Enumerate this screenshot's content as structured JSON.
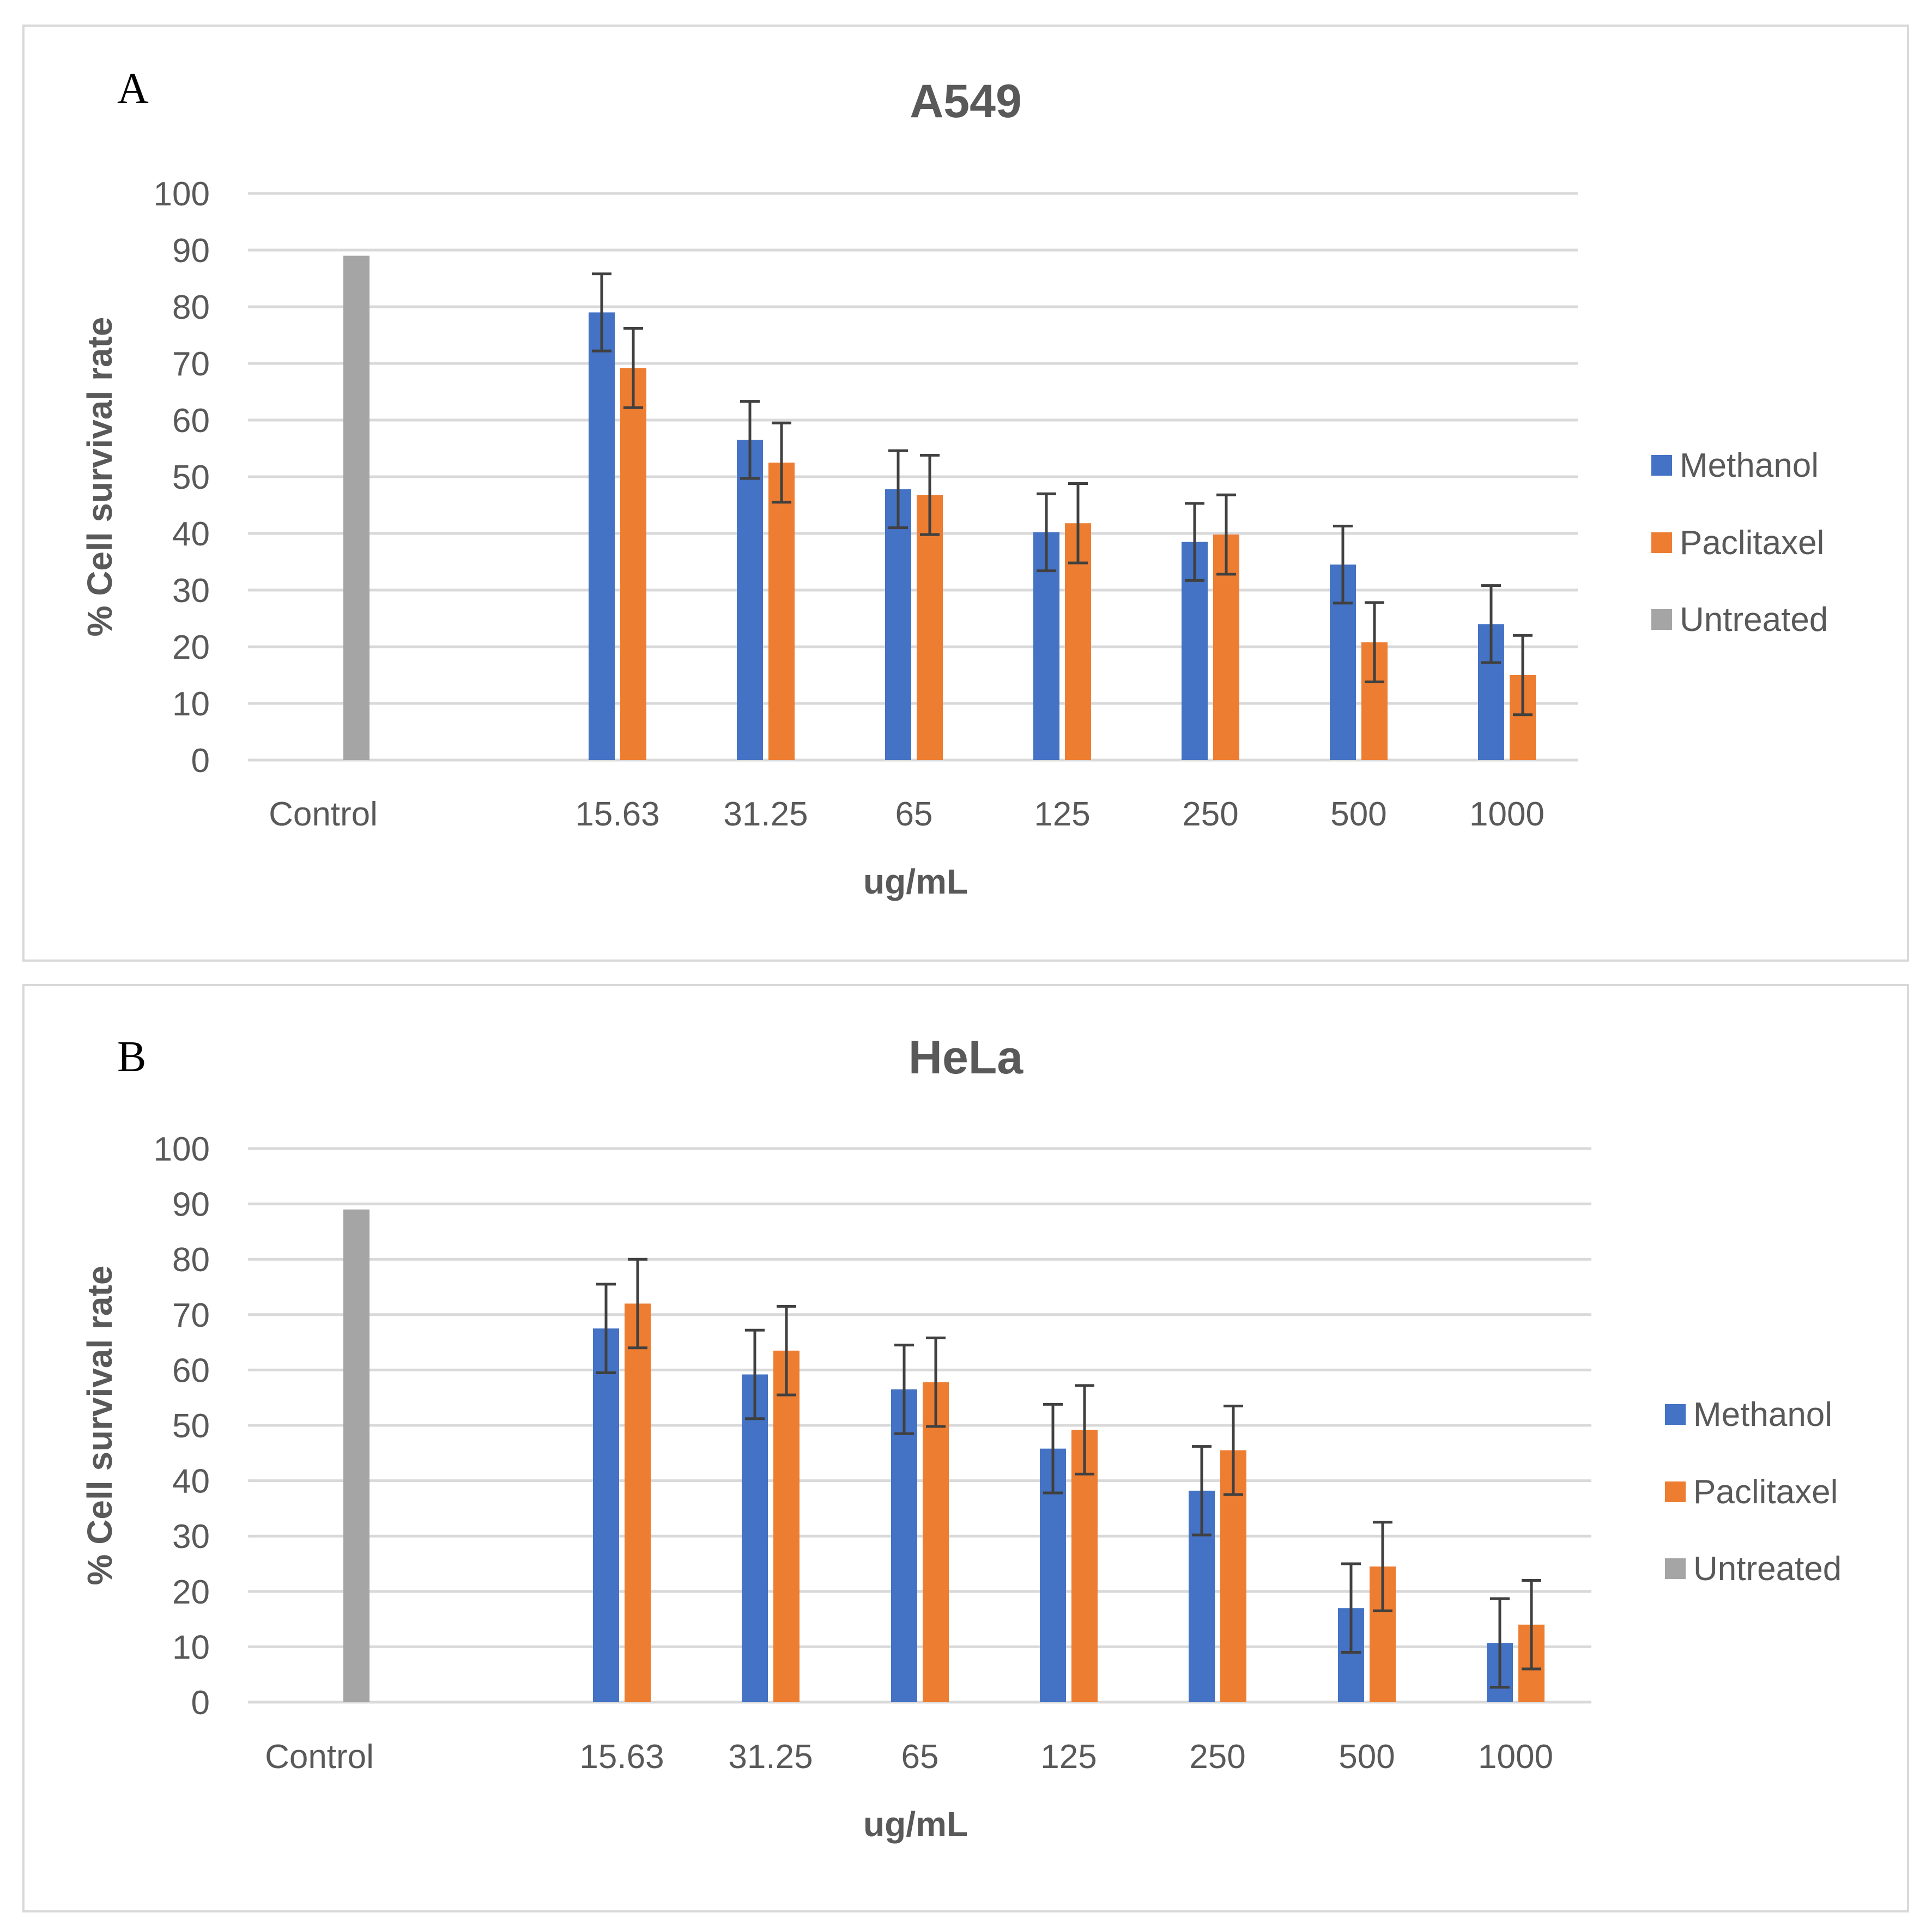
{
  "panels": [
    {
      "letter": "A"
    },
    {
      "letter": "B"
    }
  ],
  "chart_data": [
    {
      "type": "bar",
      "title": "A549",
      "xlabel": "ug/mL",
      "ylabel": "% Cell survival rate",
      "ylim": [
        0,
        100
      ],
      "yticks": [
        0,
        10,
        20,
        30,
        40,
        50,
        60,
        70,
        80,
        90,
        100
      ],
      "grid": true,
      "legend_position": "right",
      "categories": [
        "Control",
        "15.63",
        "31.25",
        "65",
        "125",
        "250",
        "500",
        "1000"
      ],
      "series": [
        {
          "name": "Methanol",
          "color": "#4472c4",
          "values": [
            null,
            79,
            56.5,
            47.8,
            40.2,
            38.5,
            34.5,
            24
          ],
          "errors": [
            null,
            6.8,
            6.8,
            6.8,
            6.8,
            6.8,
            6.8,
            6.8
          ]
        },
        {
          "name": "Paclitaxel",
          "color": "#ed7d31",
          "values": [
            null,
            69.2,
            52.5,
            46.8,
            41.8,
            39.8,
            20.8,
            15
          ],
          "errors": [
            null,
            7,
            7,
            7,
            7,
            7,
            7,
            7
          ]
        },
        {
          "name": "Untreated",
          "color": "#a5a5a5",
          "values": [
            89,
            null,
            null,
            null,
            null,
            null,
            null,
            null
          ],
          "errors": [
            null,
            null,
            null,
            null,
            null,
            null,
            null,
            null
          ]
        }
      ]
    },
    {
      "type": "bar",
      "title": "HeLa",
      "xlabel": "ug/mL",
      "ylabel": "% Cell survival rate",
      "ylim": [
        0,
        100
      ],
      "yticks": [
        0,
        10,
        20,
        30,
        40,
        50,
        60,
        70,
        80,
        90,
        100
      ],
      "grid": true,
      "legend_position": "right",
      "categories": [
        "Control",
        "15.63",
        "31.25",
        "65",
        "125",
        "250",
        "500",
        "1000"
      ],
      "series": [
        {
          "name": "Methanol",
          "color": "#4472c4",
          "values": [
            null,
            67.5,
            59.2,
            56.5,
            45.8,
            38.2,
            17,
            10.7
          ],
          "errors": [
            null,
            8,
            8,
            8,
            8,
            8,
            8,
            8
          ]
        },
        {
          "name": "Paclitaxel",
          "color": "#ed7d31",
          "values": [
            null,
            72,
            63.5,
            57.8,
            49.2,
            45.5,
            24.5,
            14
          ],
          "errors": [
            null,
            8,
            8,
            8,
            8,
            8,
            8,
            8
          ]
        },
        {
          "name": "Untreated",
          "color": "#a5a5a5",
          "values": [
            89,
            null,
            null,
            null,
            null,
            null,
            null,
            null
          ],
          "errors": [
            null,
            null,
            null,
            null,
            null,
            null,
            null,
            null
          ]
        }
      ]
    }
  ]
}
